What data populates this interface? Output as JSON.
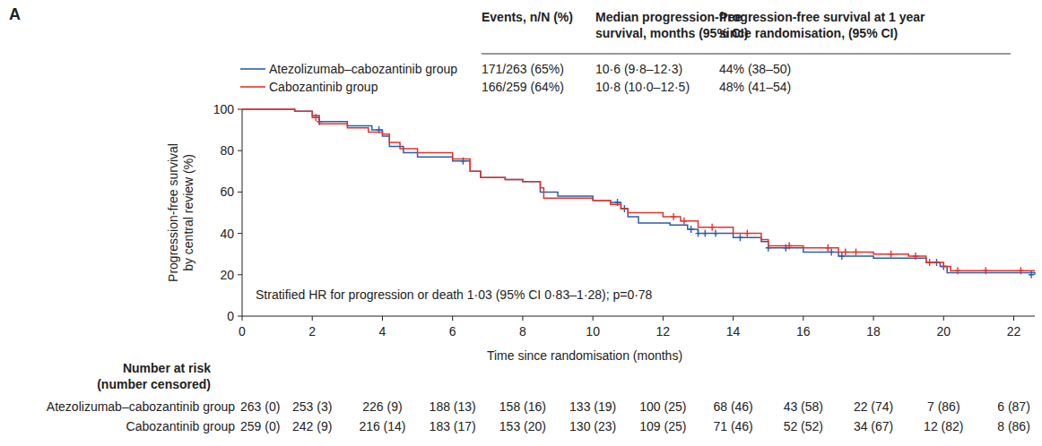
{
  "chart_data": {
    "type": "step",
    "panel_label": "A",
    "x_label": "Time since randomisation (months)",
    "y_label": [
      "Progression-free survival",
      "by central review (%)"
    ],
    "xlim": [
      0,
      22.6
    ],
    "ylim": [
      0,
      100
    ],
    "xticks": [
      0,
      2,
      4,
      6,
      8,
      10,
      12,
      14,
      16,
      18,
      20,
      22
    ],
    "yticks": [
      0,
      20,
      40,
      60,
      80,
      100
    ],
    "grid": false,
    "annotation": "Stratified HR for progression or death 1·03 (95% CI 0·83–1·28); p=0·78",
    "legend_table": {
      "headers": [
        [
          "Events, n/N (%)"
        ],
        [
          "Median progression-free",
          "survival, months (95% CI)"
        ],
        [
          "Progression-free survival at 1 year",
          "since randomisation, (95% CI)"
        ]
      ],
      "rows": [
        [
          "171/263 (65%)",
          "10·6 (9·8–12·3)",
          "44% (38–50)"
        ],
        [
          "166/259 (64%)",
          "10·8 (10·0–12·5)",
          "48% (41–54)"
        ]
      ]
    },
    "series": [
      {
        "name": "Atezolizumab–cabozantinib group",
        "color": "#2b5ea7",
        "marker": "plus",
        "x": [
          0,
          1.5,
          2,
          2.2,
          3,
          3.7,
          4.0,
          4.2,
          4.6,
          5,
          6,
          6.5,
          6.8,
          7.5,
          8,
          8.5,
          9,
          10,
          10.5,
          10.8,
          11,
          11.3,
          12.2,
          12.7,
          13,
          14,
          14.8,
          15,
          16,
          17,
          18,
          19.5,
          19.9,
          20.1,
          22.6
        ],
        "values": [
          100,
          99,
          97,
          94,
          92,
          90,
          87,
          82,
          79,
          77,
          75,
          70,
          67,
          66,
          65,
          60,
          58,
          56,
          55,
          52,
          48,
          45,
          44,
          42,
          40,
          38,
          36,
          33,
          31,
          29,
          28,
          26,
          24,
          21,
          20
        ],
        "censor_x": [
          2.2,
          3.9,
          6.3,
          10.7,
          10.9,
          12.8,
          13.0,
          13.2,
          13.5,
          14.2,
          15.0,
          15.5,
          16.8,
          17.1,
          19.8,
          20.0,
          22.5
        ],
        "censor_y": [
          94,
          90,
          75,
          55,
          52,
          42,
          40,
          40,
          40,
          38,
          33,
          33,
          31,
          29,
          26,
          24,
          20
        ]
      },
      {
        "name": "Cabozantinib group",
        "color": "#e5322b",
        "marker": "plus",
        "x": [
          0,
          1.5,
          2,
          2.2,
          3,
          3.6,
          4.0,
          4.2,
          4.5,
          5,
          6,
          6.5,
          6.8,
          7.5,
          8,
          8.5,
          8.6,
          10,
          10.5,
          10.8,
          11,
          12,
          12.5,
          13,
          14,
          14.8,
          15,
          16,
          17,
          18,
          19,
          19.5,
          20,
          20.2,
          22.6
        ],
        "values": [
          100,
          99,
          96,
          93,
          91,
          89,
          88,
          84,
          81,
          79,
          76,
          70,
          67,
          66,
          65,
          62,
          57,
          56,
          54,
          52,
          50,
          48,
          46,
          43,
          40,
          37,
          34,
          33,
          31,
          30,
          29,
          26,
          24,
          22,
          22
        ],
        "censor_x": [
          2.1,
          12.3,
          12.6,
          13.4,
          14.4,
          15.6,
          16.7,
          17.2,
          17.5,
          18.5,
          19.2,
          19.6,
          20.4,
          21.2,
          22.2
        ],
        "censor_y": [
          96,
          48,
          46,
          43,
          40,
          34,
          33,
          31,
          31,
          30,
          29,
          26,
          22,
          22,
          22
        ]
      }
    ],
    "risk_table": {
      "title": [
        "Number at risk",
        "(number censored)"
      ],
      "times": [
        0,
        2,
        4,
        6,
        8,
        10,
        12,
        14,
        16,
        18,
        20,
        22
      ],
      "rows": [
        [
          "263 (0)",
          "253 (3)",
          "226 (9)",
          "188 (13)",
          "158 (16)",
          "133 (19)",
          "100 (25)",
          "68 (46)",
          "43 (58)",
          "22 (74)",
          "7 (86)",
          "6 (87)"
        ],
        [
          "259 (0)",
          "242 (9)",
          "216 (14)",
          "183 (17)",
          "153 (20)",
          "130 (23)",
          "109 (25)",
          "71 (46)",
          "52 (52)",
          "34 (67)",
          "12 (82)",
          "8 (86)"
        ]
      ]
    }
  }
}
